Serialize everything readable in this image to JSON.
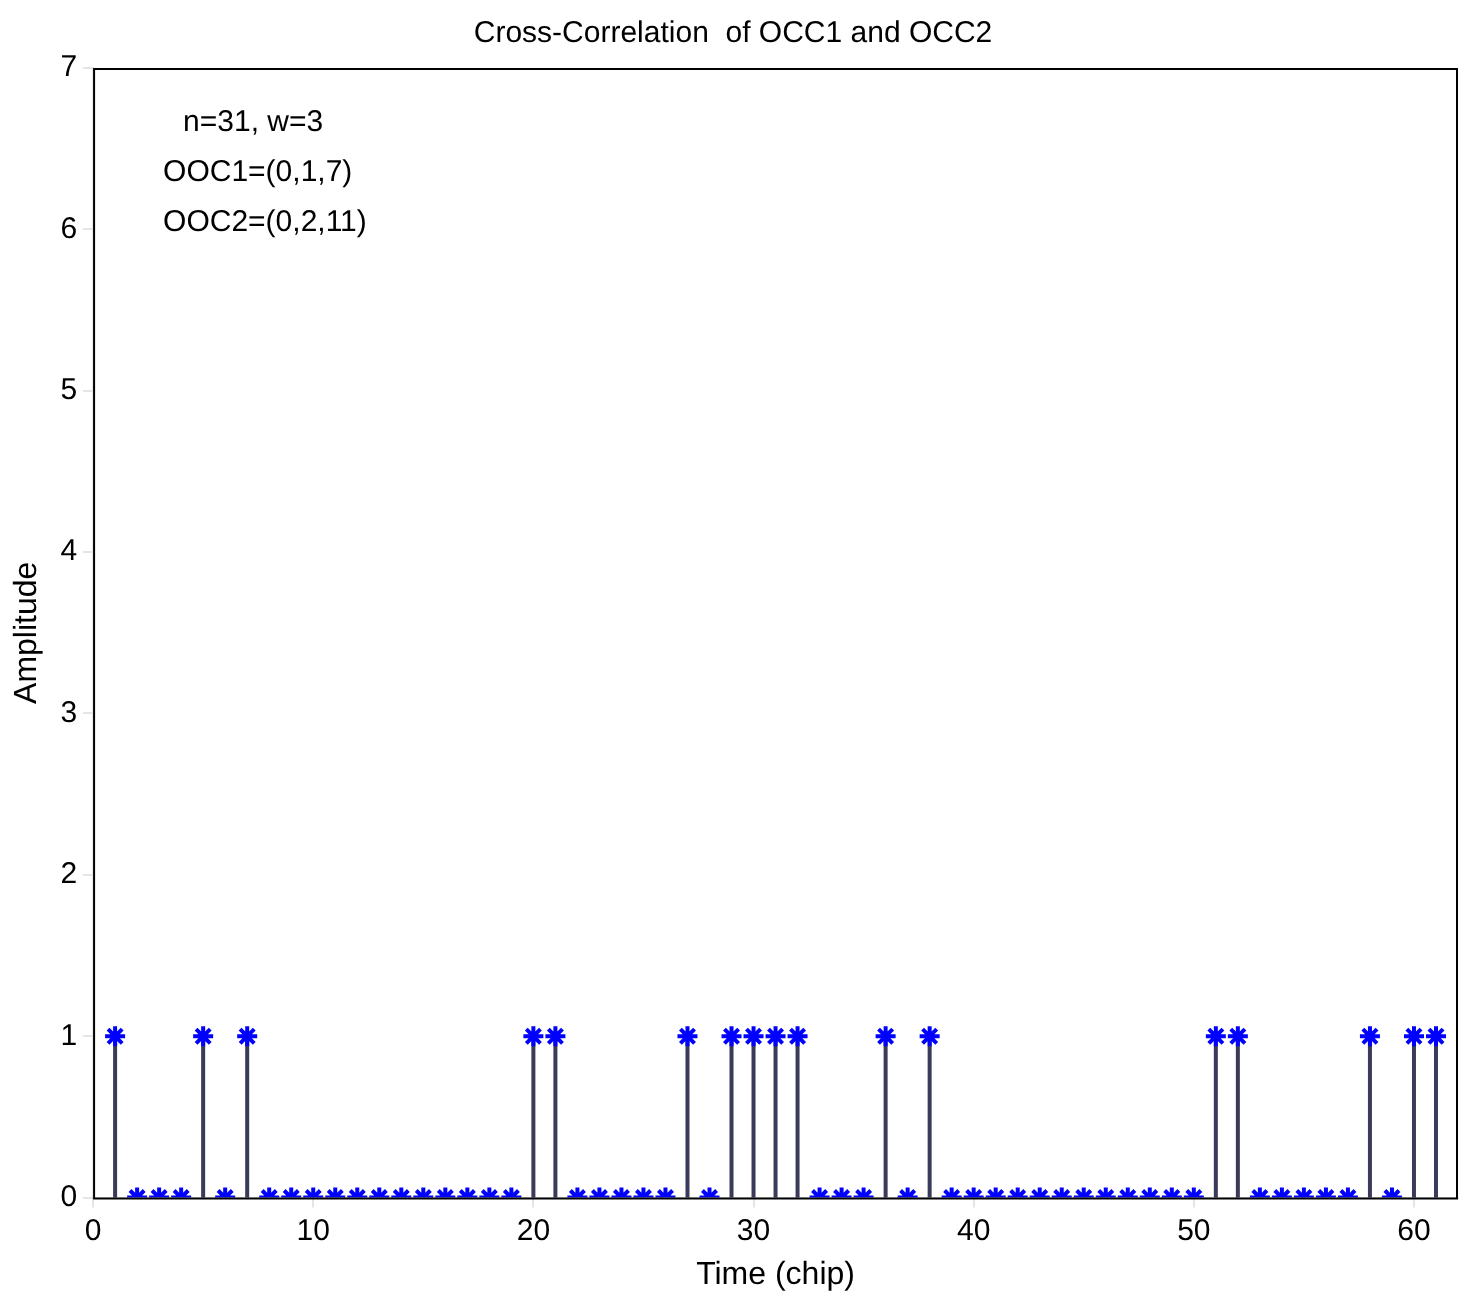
{
  "chart_data": {
    "type": "lollipop",
    "title": "Cross-Correlation  of OCC1 and OCC2",
    "xlabel": "Time (chip)",
    "ylabel": "Amplitude",
    "annotations": [
      "n=31, w=3",
      "OOC1=(0,1,7)",
      "OOC2=(0,2,11)"
    ],
    "x": [
      1,
      2,
      3,
      4,
      5,
      6,
      7,
      8,
      9,
      10,
      11,
      12,
      13,
      14,
      15,
      16,
      17,
      18,
      19,
      20,
      21,
      22,
      23,
      24,
      25,
      26,
      27,
      28,
      29,
      30,
      31,
      32,
      33,
      34,
      35,
      36,
      37,
      38,
      39,
      40,
      41,
      42,
      43,
      44,
      45,
      46,
      47,
      48,
      49,
      50,
      51,
      52,
      53,
      54,
      55,
      56,
      57,
      58,
      59,
      60,
      61
    ],
    "values": [
      1,
      0,
      0,
      0,
      1,
      0,
      1,
      0,
      0,
      0,
      0,
      0,
      0,
      0,
      0,
      0,
      0,
      0,
      0,
      1,
      1,
      0,
      0,
      0,
      0,
      0,
      1,
      0,
      1,
      1,
      1,
      1,
      0,
      0,
      0,
      1,
      0,
      1,
      0,
      0,
      0,
      0,
      0,
      0,
      0,
      0,
      0,
      0,
      0,
      0,
      1,
      1,
      0,
      0,
      0,
      0,
      0,
      1,
      0,
      1,
      1
    ],
    "color": "#0000ff",
    "marker": "cross",
    "grid": false,
    "legend": false,
    "xlim": [
      0,
      62
    ],
    "xticks": [
      0,
      10,
      20,
      30,
      40,
      50,
      60
    ],
    "ylim": [
      0,
      7
    ],
    "yticks": [
      0,
      1,
      2,
      3,
      4,
      5,
      6,
      7
    ]
  }
}
